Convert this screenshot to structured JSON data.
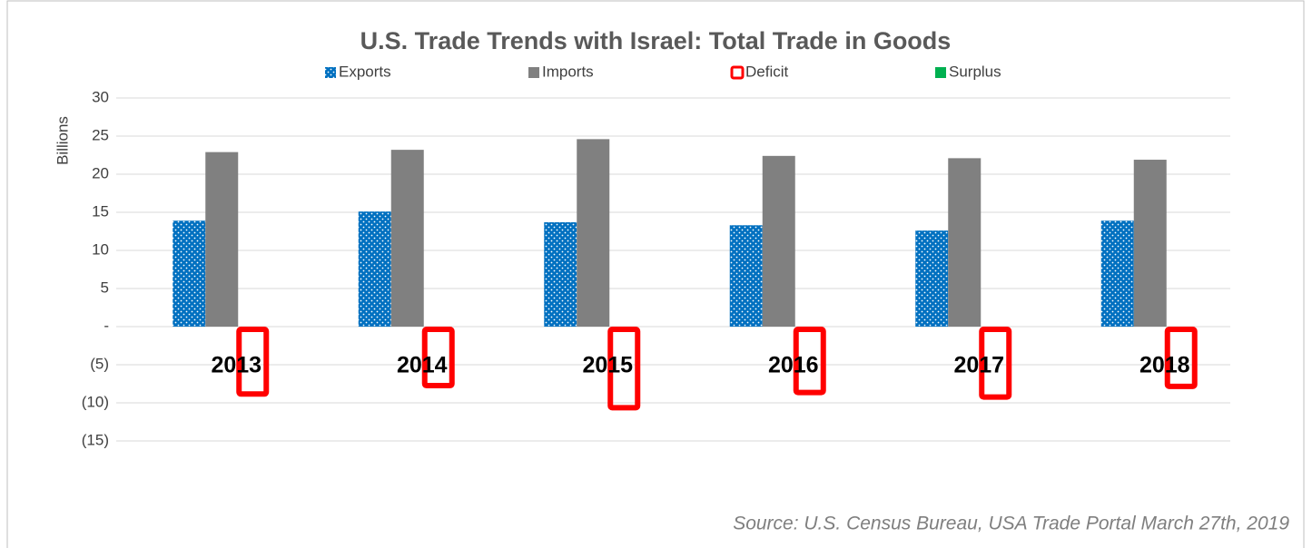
{
  "chart_data": {
    "type": "bar",
    "title": "U.S. Trade Trends with Israel: Total Trade in Goods",
    "y_label": "Billions",
    "source": "Source: U.S. Census Bureau, USA Trade Portal March 27th, 2019",
    "categories": [
      "2013",
      "2014",
      "2015",
      "2016",
      "2017",
      "2018"
    ],
    "series": [
      {
        "name": "Exports",
        "color": "#0070c0",
        "values": [
          13.9,
          15.1,
          13.7,
          13.3,
          12.6,
          13.9
        ]
      },
      {
        "name": "Imports",
        "color": "#808080",
        "values": [
          22.9,
          23.2,
          24.6,
          22.4,
          22.1,
          21.9
        ]
      },
      {
        "name": "Deficit",
        "color": "#ff0000",
        "values": [
          -9.2,
          -8.1,
          -11.0,
          -9.0,
          -9.6,
          -8.2
        ]
      },
      {
        "name": "Surplus",
        "color": "#00b050",
        "values": [
          null,
          null,
          null,
          null,
          null,
          null
        ]
      }
    ],
    "ylim": [
      -15,
      30
    ],
    "yticks": [
      30,
      25,
      20,
      15,
      10,
      5,
      {
        "value": 0,
        "label": "-"
      },
      {
        "value": -5,
        "label": "(5)"
      },
      {
        "value": -10,
        "label": "(10)"
      },
      {
        "value": -15,
        "label": "(15)"
      }
    ],
    "grid": true
  }
}
